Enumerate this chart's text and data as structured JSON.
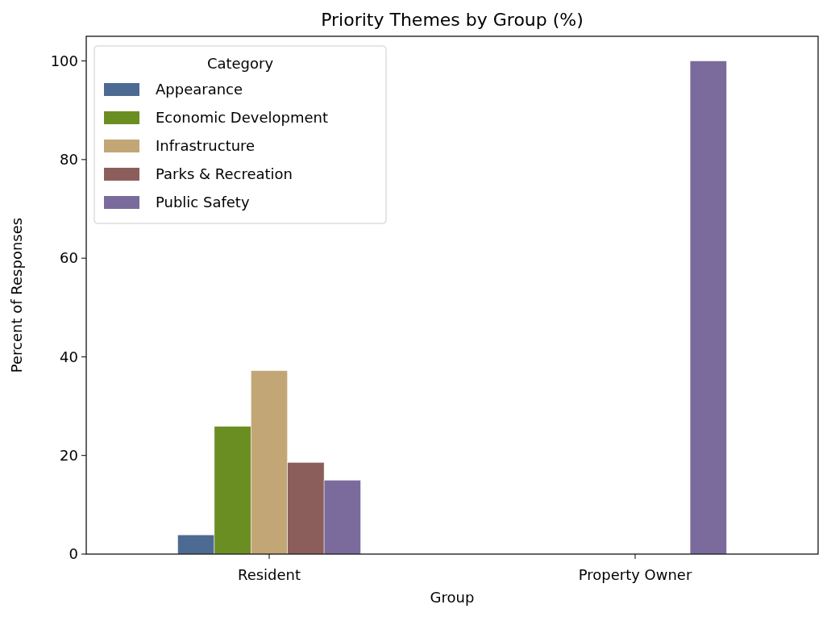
{
  "chart_data": {
    "type": "bar",
    "title": "Priority Themes by Group (%)",
    "xlabel": "Group",
    "ylabel": "Percent of Responses",
    "legend_title": "Category",
    "categories": [
      "Resident",
      "Property Owner"
    ],
    "series": [
      {
        "name": "Appearance",
        "color": "#4c6a92",
        "values": [
          3.9,
          null
        ]
      },
      {
        "name": "Economic Development",
        "color": "#6b8e23",
        "values": [
          25.9,
          null
        ]
      },
      {
        "name": "Infrastructure",
        "color": "#c2a676",
        "values": [
          37.2,
          null
        ]
      },
      {
        "name": "Parks & Recreation",
        "color": "#8b5e5c",
        "values": [
          18.6,
          null
        ]
      },
      {
        "name": "Public Safety",
        "color": "#7b6b9c",
        "values": [
          15.0,
          100
        ]
      }
    ],
    "ylim": [
      0,
      105
    ],
    "yticks": [
      0,
      20,
      40,
      60,
      80,
      100
    ],
    "grid": false,
    "legend": "top left"
  }
}
